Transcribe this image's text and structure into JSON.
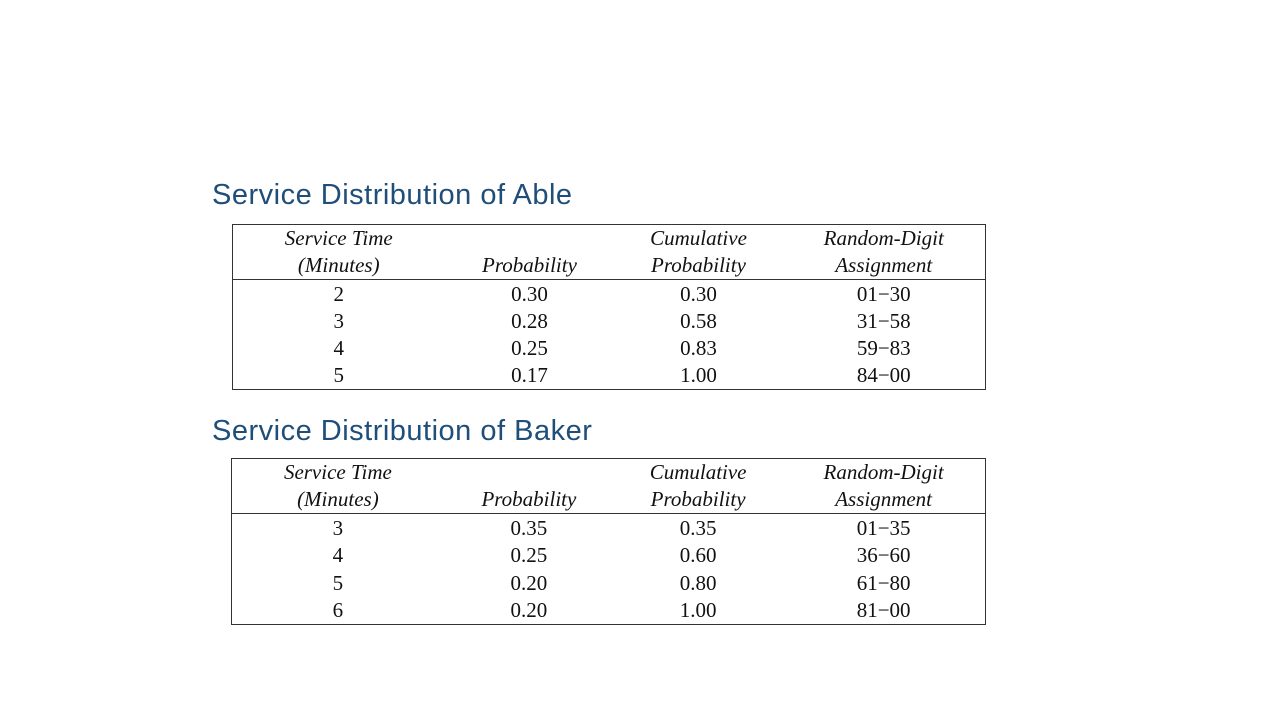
{
  "able": {
    "title": "Service Distribution of Able",
    "headers": {
      "col1_line1": "Service Time",
      "col1_line2": "(Minutes)",
      "col2_line1": "",
      "col2_line2": "Probability",
      "col3_line1": "Cumulative",
      "col3_line2": "Probability",
      "col4_line1": "Random-Digit",
      "col4_line2": "Assignment"
    },
    "rows": [
      {
        "time": "2",
        "prob": "0.30",
        "cum": "0.30",
        "digits": "01−30"
      },
      {
        "time": "3",
        "prob": "0.28",
        "cum": "0.58",
        "digits": "31−58"
      },
      {
        "time": "4",
        "prob": "0.25",
        "cum": "0.83",
        "digits": "59−83"
      },
      {
        "time": "5",
        "prob": "0.17",
        "cum": "1.00",
        "digits": "84−00"
      }
    ]
  },
  "baker": {
    "title": "Service Distribution of Baker",
    "headers": {
      "col1_line1": "Service Time",
      "col1_line2": "(Minutes)",
      "col2_line1": "",
      "col2_line2": "Probability",
      "col3_line1": "Cumulative",
      "col3_line2": "Probability",
      "col4_line1": "Random-Digit",
      "col4_line2": "Assignment"
    },
    "rows": [
      {
        "time": "3",
        "prob": "0.35",
        "cum": "0.35",
        "digits": "01−35"
      },
      {
        "time": "4",
        "prob": "0.25",
        "cum": "0.60",
        "digits": "36−60"
      },
      {
        "time": "5",
        "prob": "0.20",
        "cum": "0.80",
        "digits": "61−80"
      },
      {
        "time": "6",
        "prob": "0.20",
        "cum": "1.00",
        "digits": "81−00"
      }
    ]
  }
}
